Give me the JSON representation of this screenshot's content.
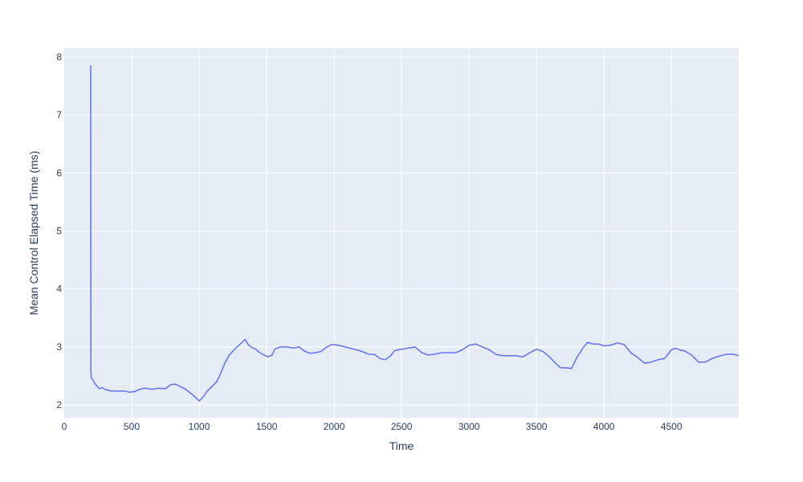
{
  "chart_data": {
    "type": "line",
    "title": "",
    "xlabel": "Time",
    "ylabel": "Mean Control Elapsed Time (ms)",
    "xlim": [
      0,
      4999
    ],
    "ylim": [
      1.78,
      8.15
    ],
    "x_ticks": [
      0,
      500,
      1000,
      1500,
      2000,
      2500,
      3000,
      3500,
      4000,
      4500
    ],
    "y_ticks": [
      2,
      3,
      4,
      5,
      6,
      7,
      8
    ],
    "grid": true,
    "legend": "none",
    "colors": {
      "line": "#636efa",
      "plot_bg": "#e5ecf6",
      "grid": "#ffffff",
      "text": "#2a3f5f"
    },
    "series": [
      {
        "x": [
          195,
          196,
          197,
          200,
          210,
          230,
          260,
          280,
          300,
          350,
          400,
          450,
          480,
          520,
          560,
          600,
          650,
          700,
          750,
          790,
          820,
          850,
          900,
          950,
          990,
          1000,
          1030,
          1060,
          1100,
          1130,
          1160,
          1190,
          1220,
          1250,
          1280,
          1310,
          1340,
          1360,
          1390,
          1420,
          1450,
          1480,
          1510,
          1540,
          1560,
          1600,
          1650,
          1700,
          1740,
          1780,
          1820,
          1860,
          1900,
          1940,
          1980,
          2000,
          2050,
          2100,
          2150,
          2200,
          2250,
          2300,
          2340,
          2380,
          2420,
          2450,
          2500,
          2550,
          2600,
          2650,
          2700,
          2750,
          2800,
          2850,
          2900,
          2950,
          3000,
          3050,
          3100,
          3150,
          3200,
          3250,
          3300,
          3350,
          3400,
          3450,
          3500,
          3550,
          3600,
          3650,
          3680,
          3720,
          3760,
          3800,
          3850,
          3880,
          3920,
          3960,
          4000,
          4050,
          4100,
          4150,
          4200,
          4250,
          4300,
          4350,
          4400,
          4450,
          4500,
          4530,
          4560,
          4600,
          4650,
          4700,
          4750,
          4800,
          4850,
          4900,
          4950,
          4999
        ],
        "y": [
          7.85,
          7.85,
          2.6,
          2.47,
          2.44,
          2.36,
          2.28,
          2.3,
          2.27,
          2.24,
          2.24,
          2.24,
          2.22,
          2.23,
          2.27,
          2.29,
          2.27,
          2.29,
          2.28,
          2.35,
          2.36,
          2.33,
          2.27,
          2.18,
          2.09,
          2.07,
          2.14,
          2.24,
          2.33,
          2.4,
          2.55,
          2.72,
          2.85,
          2.93,
          3.0,
          3.06,
          3.13,
          3.05,
          2.99,
          2.96,
          2.9,
          2.86,
          2.83,
          2.86,
          2.96,
          3.0,
          3.0,
          2.98,
          3.0,
          2.93,
          2.89,
          2.9,
          2.92,
          2.99,
          3.04,
          3.04,
          3.02,
          2.99,
          2.96,
          2.93,
          2.88,
          2.87,
          2.8,
          2.78,
          2.85,
          2.94,
          2.96,
          2.98,
          3.0,
          2.9,
          2.86,
          2.88,
          2.9,
          2.9,
          2.9,
          2.95,
          3.03,
          3.05,
          3.0,
          2.95,
          2.87,
          2.85,
          2.85,
          2.85,
          2.83,
          2.9,
          2.96,
          2.92,
          2.82,
          2.7,
          2.64,
          2.64,
          2.63,
          2.82,
          3.0,
          3.08,
          3.05,
          3.05,
          3.02,
          3.03,
          3.07,
          3.04,
          2.9,
          2.82,
          2.72,
          2.74,
          2.78,
          2.8,
          2.95,
          2.98,
          2.95,
          2.93,
          2.86,
          2.74,
          2.74,
          2.8,
          2.84,
          2.87,
          2.88,
          2.85
        ]
      }
    ]
  }
}
